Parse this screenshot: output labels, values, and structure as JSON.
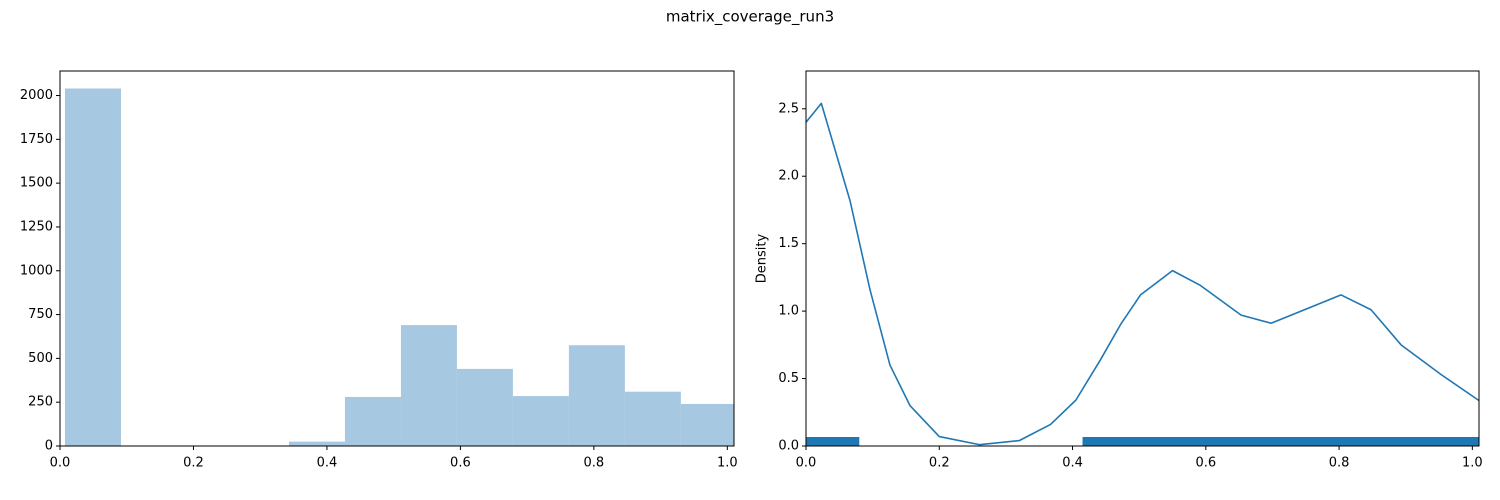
{
  "title": "matrix_coverage_run3",
  "chart_data": [
    {
      "type": "histogram",
      "color": "#a6c8e0",
      "bins": [
        0.0075,
        0.0914,
        0.1753,
        0.2592,
        0.3431,
        0.427,
        0.5109,
        0.5948,
        0.6787,
        0.7626,
        0.8465,
        0.9304,
        1.0143
      ],
      "values": [
        2040,
        0,
        0,
        0,
        25,
        280,
        690,
        440,
        285,
        575,
        310,
        240
      ],
      "xlim": [
        0,
        1.01
      ],
      "ylim": [
        0,
        2140
      ],
      "xticks": [
        {
          "value": 0,
          "label": "0.0"
        },
        {
          "value": 0.2,
          "label": "0.2"
        },
        {
          "value": 0.4,
          "label": "0.4"
        },
        {
          "value": 0.6,
          "label": "0.6"
        },
        {
          "value": 0.8,
          "label": "0.8"
        },
        {
          "value": 1,
          "label": "1.0"
        }
      ],
      "yticks": [
        0,
        250,
        500,
        750,
        1000,
        1250,
        1500,
        1750,
        2000
      ]
    },
    {
      "type": "line",
      "ylabel": "Density",
      "x": [
        0,
        0.023,
        0.066,
        0.096,
        0.126,
        0.156,
        0.2,
        0.26,
        0.32,
        0.367,
        0.405,
        0.442,
        0.472,
        0.502,
        0.55,
        0.592,
        0.653,
        0.698,
        0.743,
        0.803,
        0.848,
        0.893,
        0.953,
        1.012
      ],
      "series": [
        {
          "color": "#1f77b4",
          "values": [
            2.4,
            2.54,
            1.82,
            1.16,
            0.6,
            0.3,
            0.07,
            0.01,
            0.04,
            0.16,
            0.34,
            0.64,
            0.9,
            1.12,
            1.3,
            1.19,
            0.97,
            0.91,
            1.0,
            1.12,
            1.01,
            0.75,
            0.53,
            0.33
          ]
        }
      ],
      "rug": [
        {
          "start": 0.0,
          "end": 0.08
        },
        {
          "start": 0.415,
          "end": 1.01
        }
      ],
      "xlim": [
        0,
        1.01
      ],
      "ylim": [
        0,
        2.78
      ],
      "xticks": [
        {
          "value": 0,
          "label": "0.0"
        },
        {
          "value": 0.2,
          "label": "0.2"
        },
        {
          "value": 0.4,
          "label": "0.4"
        },
        {
          "value": 0.6,
          "label": "0.6"
        },
        {
          "value": 0.8,
          "label": "0.8"
        },
        {
          "value": 1,
          "label": "1.0"
        }
      ],
      "yticks": [
        {
          "value": 0,
          "label": "0.0"
        },
        {
          "value": 0.5,
          "label": "0.5"
        },
        {
          "value": 1,
          "label": "1.0"
        },
        {
          "value": 1.5,
          "label": "1.5"
        },
        {
          "value": 2,
          "label": "2.0"
        },
        {
          "value": 2.5,
          "label": "2.5"
        }
      ]
    }
  ]
}
